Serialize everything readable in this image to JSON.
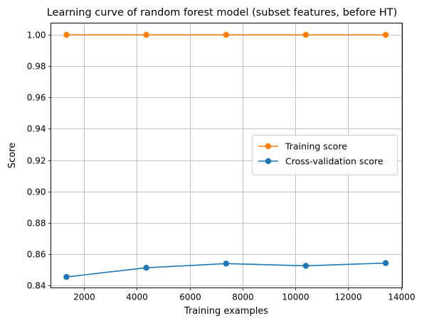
{
  "chart_data": {
    "type": "line",
    "title": "Learning curve of random forest model (subset features, before HT)",
    "xlabel": "Training examples",
    "ylabel": "Score",
    "xlim": [
      750,
      14050
    ],
    "ylim": [
      0.8385,
      1.0075
    ],
    "x_ticks": [
      2000,
      4000,
      6000,
      8000,
      10000,
      12000,
      14000
    ],
    "x_tick_labels": [
      "2000",
      "4000",
      "6000",
      "8000",
      "10000",
      "12000",
      "14000"
    ],
    "y_ticks": [
      0.84,
      0.86,
      0.88,
      0.9,
      0.92,
      0.94,
      0.96,
      0.98,
      1.0
    ],
    "y_tick_labels": [
      "0.84",
      "0.86",
      "0.88",
      "0.90",
      "0.92",
      "0.94",
      "0.96",
      "0.98",
      "1.00"
    ],
    "grid": true,
    "legend_position": "center-right",
    "x": [
      1340,
      4360,
      7380,
      10400,
      13420
    ],
    "series": [
      {
        "name": "Training score",
        "color": "#ff7f0e",
        "values": [
          1.0,
          1.0,
          1.0,
          1.0,
          1.0
        ]
      },
      {
        "name": "Cross-validation score",
        "color": "#1f77b4",
        "values": [
          0.8455,
          0.8513,
          0.854,
          0.8526,
          0.8543
        ]
      }
    ]
  }
}
